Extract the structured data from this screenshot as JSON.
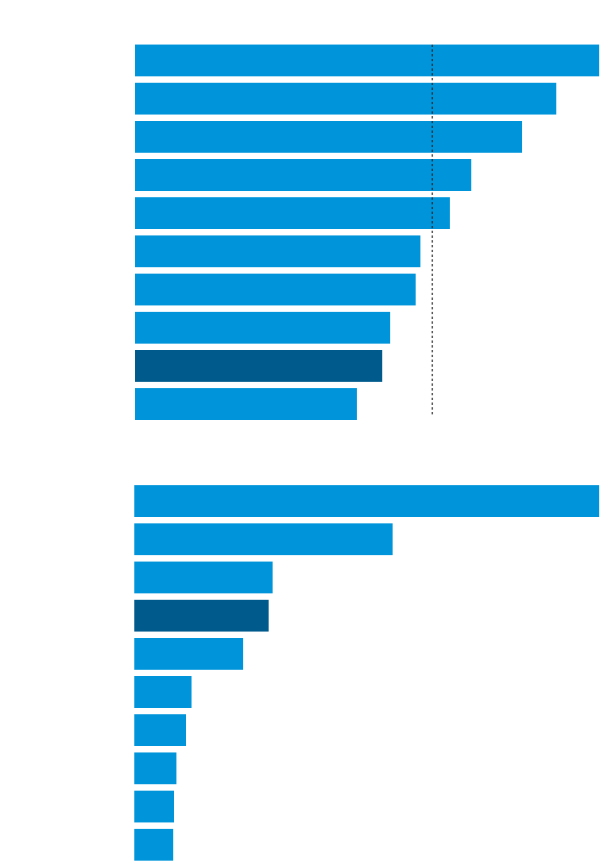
{
  "chart_data": [
    {
      "type": "bar",
      "orientation": "horizontal",
      "xlim": [
        0,
        584
      ],
      "values": [
        584,
        530,
        487,
        423,
        396,
        359,
        353,
        321,
        311,
        279
      ],
      "colors": [
        "#0095da",
        "#0095da",
        "#0095da",
        "#0095da",
        "#0095da",
        "#0095da",
        "#0095da",
        "#0095da",
        "#005a8c",
        "#0095da"
      ],
      "reference": 374
    },
    {
      "type": "bar",
      "orientation": "horizontal",
      "xlim": [
        0,
        585
      ],
      "values": [
        585,
        325,
        174,
        169,
        137,
        72,
        65,
        53,
        50,
        49
      ],
      "colors": [
        "#0095da",
        "#0095da",
        "#0095da",
        "#005a8c",
        "#0095da",
        "#0095da",
        "#0095da",
        "#0095da",
        "#0095da",
        "#0095da"
      ]
    }
  ]
}
